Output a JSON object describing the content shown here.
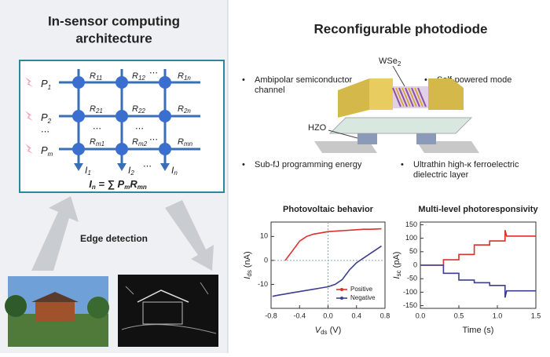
{
  "architecture": {
    "title_lines": [
      "In-sensor computing",
      "architecture"
    ],
    "inputs": [
      {
        "symbol": "P",
        "sub": "1"
      },
      {
        "symbol": "P",
        "sub": "2"
      },
      {
        "symbol": "P",
        "sub": "m"
      }
    ],
    "weights": [
      [
        {
          "symbol": "R",
          "sub": "11"
        },
        {
          "symbol": "R",
          "sub": "12"
        },
        {
          "symbol": "R",
          "sub": "1n"
        }
      ],
      [
        {
          "symbol": "R",
          "sub": "21"
        },
        {
          "symbol": "R",
          "sub": "22"
        },
        {
          "symbol": "R",
          "sub": "2n"
        }
      ],
      [
        {
          "symbol": "R",
          "sub": "m1"
        },
        {
          "symbol": "R",
          "sub": "m2"
        },
        {
          "symbol": "R",
          "sub": "mn"
        }
      ]
    ],
    "outputs": [
      {
        "symbol": "I",
        "sub": "1"
      },
      {
        "symbol": "I",
        "sub": "2"
      },
      {
        "symbol": "I",
        "sub": "n"
      }
    ],
    "ellipsis": "⋯",
    "equation": {
      "lhs_symbol": "I",
      "lhs_sub": "n",
      "operator": " = ∑ ",
      "p_symbol": "P",
      "p_sub": "m",
      "r_symbol": "R",
      "r_sub": "mn"
    },
    "caption": "Edge detection"
  },
  "device": {
    "title": "Reconfigurable photodiode",
    "features": [
      [
        "Ambipolar semiconductor",
        "channel"
      ],
      [
        "Self-powered mode"
      ],
      [
        "Sub-fJ programming energy"
      ],
      [
        "Ultrathin high-κ ferroelectric",
        "dielectric layer"
      ]
    ],
    "material": {
      "symbol": "WSe",
      "sub": "2"
    },
    "dielectric": "HZO"
  },
  "chart_data": [
    {
      "type": "line",
      "title": "Photovoltaic behavior",
      "xlabel": {
        "symbol": "V",
        "sub": "ds",
        "unit": " (V)"
      },
      "ylabel": {
        "symbol": "I",
        "sub": "ds",
        "unit": " (nA)"
      },
      "x": [
        -0.78,
        -0.7,
        -0.6,
        -0.5,
        -0.4,
        -0.3,
        -0.2,
        -0.1,
        0,
        0.1,
        0.2,
        0.3,
        0.4,
        0.5,
        0.6,
        0.75
      ],
      "series": [
        {
          "name": "Positive",
          "color": "#d9312e",
          "values": [
            null,
            null,
            0,
            4,
            8,
            10,
            11,
            11.5,
            12,
            12.2,
            12.4,
            12.6,
            12.8,
            13,
            13,
            13.2
          ]
        },
        {
          "name": "Negative",
          "color": "#3b3f8f",
          "values": [
            -15,
            -14.5,
            -14,
            -13.5,
            -13,
            -12.5,
            -12,
            -11.5,
            -11,
            -10,
            -8,
            -4,
            -1,
            1,
            3,
            6
          ]
        }
      ],
      "xlim": [
        -0.8,
        0.8
      ],
      "xticks": [
        -0.8,
        -0.4,
        {
          "value": 0,
          "label": "0.0"
        },
        0.4,
        0.8
      ],
      "ylim": [
        -20,
        16
      ],
      "yticks": [
        -10,
        0,
        10
      ],
      "legend": "lower right"
    },
    {
      "type": "line",
      "title": "Multi-level photoresponsivity",
      "xlabel": {
        "symbol": "Time (s)",
        "sub": "",
        "unit": ""
      },
      "ylabel": {
        "symbol": "I",
        "sub": "sc",
        "unit": " (pA)"
      },
      "x": [
        0,
        0.3,
        0.3,
        0.5,
        0.5,
        0.7,
        0.7,
        0.9,
        0.9,
        1.1,
        1.1,
        1.12,
        1.5
      ],
      "series": [
        {
          "color": "#d9312e",
          "values": [
            0,
            0,
            20,
            20,
            40,
            40,
            75,
            75,
            90,
            90,
            130,
            108,
            108
          ]
        },
        {
          "color": "#3b3f8f",
          "values": [
            0,
            0,
            -30,
            -30,
            -55,
            -55,
            -65,
            -65,
            -75,
            -75,
            -120,
            -95,
            -95
          ]
        }
      ],
      "xlim": [
        0,
        1.5
      ],
      "xticks": [
        {
          "value": 0,
          "label": "0.0"
        },
        0.5,
        {
          "value": 1,
          "label": "1.0"
        },
        1.5
      ],
      "ylim": [
        -160,
        160
      ],
      "yticks": [
        -150,
        -100,
        -50,
        0,
        50,
        100,
        150
      ]
    }
  ]
}
